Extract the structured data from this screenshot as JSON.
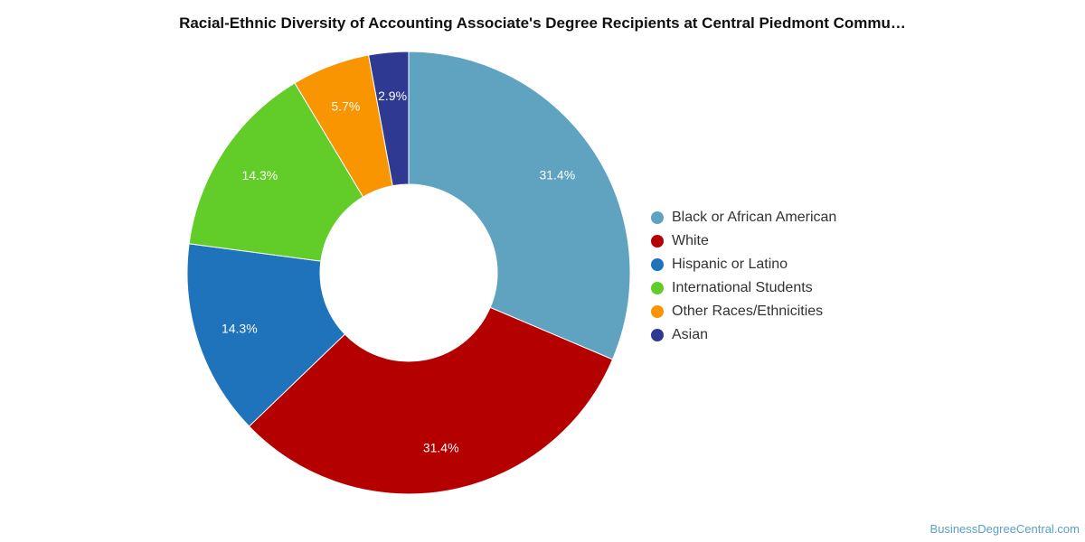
{
  "title": "Racial-Ethnic Diversity of Accounting Associate's Degree Recipients at Central Piedmont Commu…",
  "watermark": "BusinessDegreeCentral.com",
  "chart_data": {
    "type": "pie",
    "variant": "donut",
    "title": "Racial-Ethnic Diversity of Accounting Associate's Degree Recipients at Central Piedmont Commu…",
    "legend_position": "right",
    "slices": [
      {
        "name": "Black or African American",
        "value": 31.4,
        "label": "31.4%",
        "color": "#5fa3c0"
      },
      {
        "name": "White",
        "value": 31.4,
        "label": "31.4%",
        "color": "#b50000"
      },
      {
        "name": "Hispanic or Latino",
        "value": 14.3,
        "label": "14.3%",
        "color": "#1f73bb"
      },
      {
        "name": "International Students",
        "value": 14.3,
        "label": "14.3%",
        "color": "#62cd28"
      },
      {
        "name": "Other Races/Ethnicities",
        "value": 5.7,
        "label": "5.7%",
        "color": "#f89500"
      },
      {
        "name": "Asian",
        "value": 2.9,
        "label": "2.9%",
        "color": "#2e3992"
      }
    ]
  }
}
